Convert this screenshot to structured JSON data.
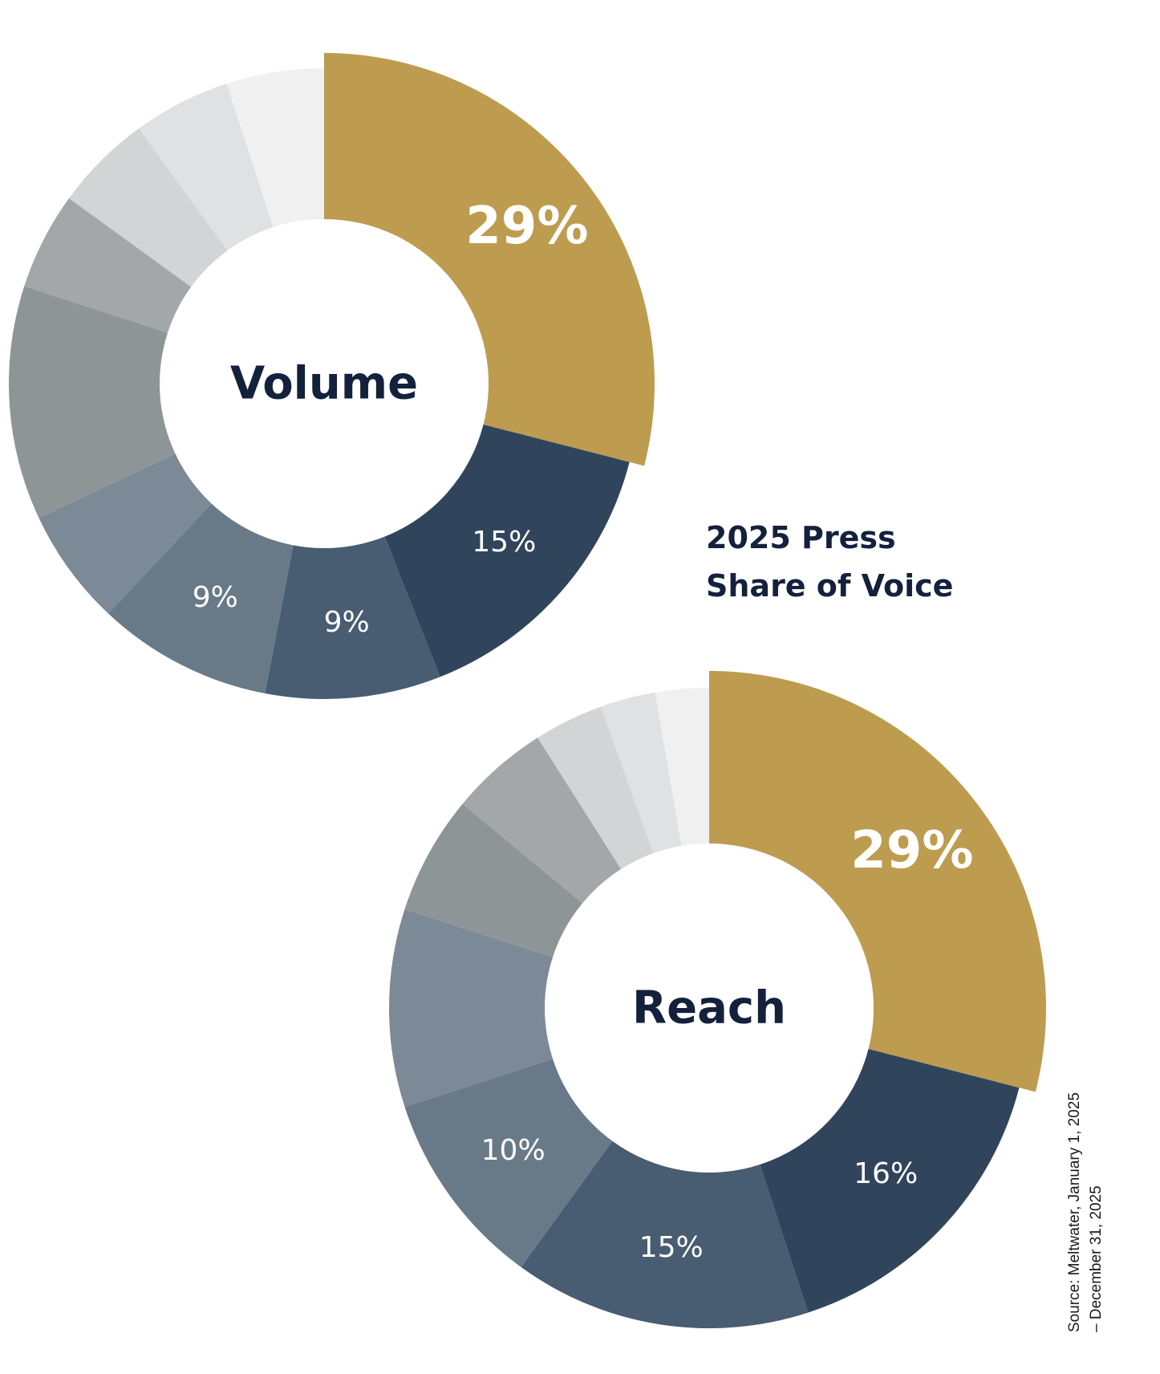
{
  "headline": {
    "line1": "2025 Press",
    "line2": "Share of Voice"
  },
  "source": {
    "line1": "Source: Meltwater, January 1, 2025",
    "line2": "– December 31, 2025"
  },
  "chart_data": [
    {
      "type": "pie",
      "center_label": "Volume",
      "slices": [
        {
          "value": 29,
          "label": "29%",
          "color": "#bd9c50",
          "highlight": true
        },
        {
          "value": 15,
          "label": "15%",
          "color": "#30455c"
        },
        {
          "value": 9,
          "label": "9%",
          "color": "#485c72"
        },
        {
          "value": 9,
          "label": "9%",
          "color": "#687a88"
        },
        {
          "value": 6,
          "label": "",
          "color": "#7c8a97"
        },
        {
          "value": 12,
          "label": "",
          "color": "#8e9597"
        },
        {
          "value": 5,
          "label": "",
          "color": "#a3a7aa"
        },
        {
          "value": 5,
          "label": "",
          "color": "#d3d4d5"
        },
        {
          "value": 5,
          "label": "",
          "color": "#e0e1e2"
        },
        {
          "value": 5,
          "label": "",
          "color": "#f0f0f0"
        }
      ]
    },
    {
      "type": "pie",
      "center_label": "Reach",
      "slices": [
        {
          "value": 29,
          "label": "29%",
          "color": "#bd9c50",
          "highlight": true
        },
        {
          "value": 16,
          "label": "16%",
          "color": "#30455c"
        },
        {
          "value": 15,
          "label": "15%",
          "color": "#485c72"
        },
        {
          "value": 10,
          "label": "10%",
          "color": "#687a88"
        },
        {
          "value": 10,
          "label": "",
          "color": "#7c8a97"
        },
        {
          "value": 6,
          "label": "",
          "color": "#8e9597"
        },
        {
          "value": 5,
          "label": "",
          "color": "#a3a7aa"
        },
        {
          "value": 3.5,
          "label": "",
          "color": "#d3d4d5"
        },
        {
          "value": 2.8,
          "label": "",
          "color": "#e0e1e2"
        },
        {
          "value": 2.7,
          "label": "",
          "color": "#f0f0f0"
        }
      ]
    }
  ]
}
